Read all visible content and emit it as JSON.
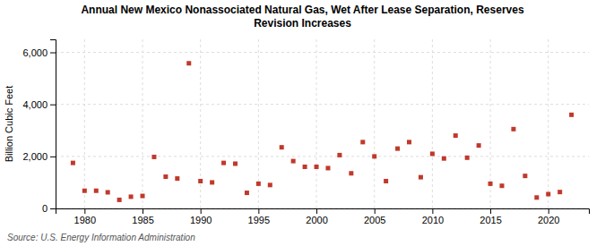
{
  "chart_data": {
    "type": "scatter",
    "title": "Annual New Mexico Nonassociated Natural Gas, Wet After Lease Separation, Reserves\nRevision Increases",
    "ylabel": "Billion Cubic Feet",
    "source": "Source: U.S. Energy Information Administration",
    "x": [
      1979,
      1980,
      1981,
      1982,
      1983,
      1984,
      1985,
      1986,
      1987,
      1988,
      1989,
      1990,
      1991,
      1992,
      1993,
      1994,
      1995,
      1996,
      1997,
      1998,
      1999,
      2000,
      2001,
      2002,
      2003,
      2004,
      2005,
      2006,
      2007,
      2008,
      2009,
      2010,
      2011,
      2012,
      2013,
      2014,
      2015,
      2016,
      2017,
      2018,
      2019,
      2020,
      2021,
      2022
    ],
    "values": [
      1750,
      680,
      680,
      620,
      330,
      450,
      480,
      1980,
      1220,
      1150,
      5580,
      1050,
      1000,
      1750,
      1720,
      600,
      950,
      900,
      2350,
      1820,
      1600,
      1600,
      1550,
      2050,
      1350,
      2550,
      2000,
      1050,
      2300,
      2550,
      1200,
      2100,
      1920,
      2800,
      1950,
      2420,
      950,
      870,
      3050,
      1250,
      420,
      550,
      630,
      3600
    ],
    "color": "#c0392b",
    "marker": "square",
    "xlim": [
      1977.5,
      2023.5
    ],
    "xticks": [
      1980,
      1985,
      1990,
      1995,
      2000,
      2005,
      2010,
      2015,
      2020
    ],
    "ylim": [
      0,
      6500
    ],
    "yticks": [
      0,
      {
        "value": 2000,
        "label": "2,000"
      },
      {
        "value": 4000,
        "label": "4,000"
      },
      {
        "value": 6000,
        "label": "6,000"
      }
    ],
    "grid": true
  }
}
